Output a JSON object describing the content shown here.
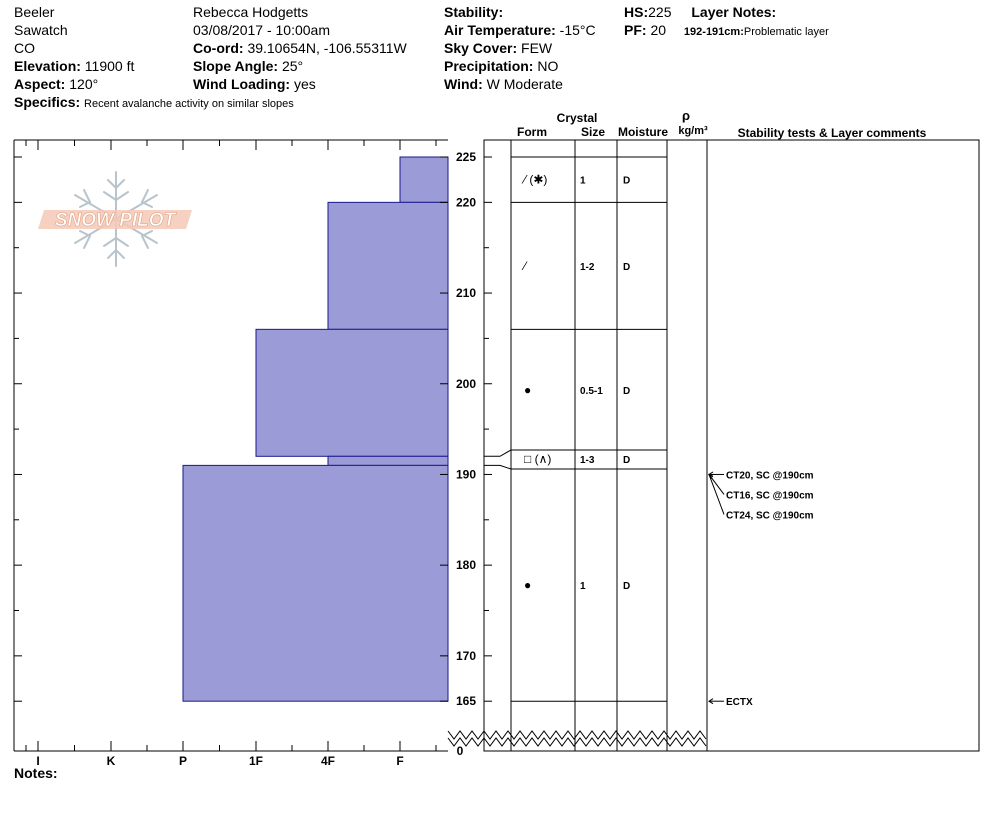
{
  "site": {
    "observer": "Beeler",
    "range": "Sawatch",
    "state": "CO",
    "elevation_label": "Elevation:",
    "elevation": "11900 ft",
    "aspect_label": "Aspect:",
    "aspect": "120°",
    "specifics_label": "Specifics:",
    "specifics": "Recent avalanche activity on similar slopes"
  },
  "meta": {
    "author": "Rebecca Hodgetts",
    "datetime": "03/08/2017 - 10:00am",
    "coord_label": "Co-ord:",
    "coord": "39.10654N, -106.55311W",
    "slope_label": "Slope Angle:",
    "slope": "25°",
    "wind_loading_label": "Wind Loading:",
    "wind_loading": "yes"
  },
  "conditions": {
    "stability_label": "Stability:",
    "stability": "",
    "air_temp_label": "Air Temperature:",
    "air_temp": "-15°C",
    "sky_label": "Sky Cover:",
    "sky": "FEW",
    "precip_label": "Precipitation:",
    "precip": "NO",
    "wind_label": "Wind:",
    "wind": "W Moderate"
  },
  "summary": {
    "hs_label": "HS:",
    "hs": "225",
    "pf_label": "PF:",
    "pf": "20",
    "layer_notes_label": "Layer Notes:",
    "layer_note_range": "192-191cm:",
    "layer_note_text": "Problematic layer"
  },
  "logo": {
    "text": "SNOW PILOT"
  },
  "columns": {
    "crystal": "Crystal",
    "form": "Form",
    "size": "Size",
    "moisture": "Moisture",
    "rho": "ρ",
    "density_unit": "kg/m³",
    "stability_comments": "Stability tests & Layer comments"
  },
  "notes_label": "Notes:",
  "colors": {
    "hardness_fill": "#9b9bd7",
    "hardness_stroke": "#1a1a8a"
  },
  "chart_data": {
    "type": "bar",
    "title": "",
    "y_axis": {
      "ylim": [
        165,
        225
      ],
      "broken_to": 0,
      "ticks": [
        225,
        220,
        210,
        200,
        190,
        180,
        170,
        165
      ],
      "bottom_label": "0"
    },
    "x_axis": {
      "hardness_scale": [
        "I",
        "K",
        "P",
        "1F",
        "4F",
        "F"
      ],
      "reversed": true
    },
    "hardness_layers": [
      {
        "top": 225,
        "bottom": 220,
        "hardness": "F"
      },
      {
        "top": 220,
        "bottom": 206,
        "hardness": "4F"
      },
      {
        "top": 206,
        "bottom": 192,
        "hardness": "1F"
      },
      {
        "top": 192,
        "bottom": 191,
        "hardness": "4F"
      },
      {
        "top": 191,
        "bottom": 165,
        "hardness": "P"
      }
    ],
    "layer_boundaries": [
      225,
      220,
      206,
      192.7,
      190.6,
      165
    ],
    "layer_details": [
      {
        "mid": 222.5,
        "form_icon": "decomposing-fragments-with-precipitation-icon",
        "form": "⁄ (✱)",
        "size": "1",
        "moisture": "D"
      },
      {
        "mid": 213,
        "form_icon": "decomposing-fragments-icon",
        "form": "⁄",
        "size": "1-2",
        "moisture": "D"
      },
      {
        "mid": 199.3,
        "form_icon": "rounded-grains-icon",
        "form": "●",
        "size": "0.5-1",
        "moisture": "D"
      },
      {
        "mid": 191.7,
        "form_icon": "faceted-crystals-with-depth-hoar-icon",
        "form": "□ (∧)",
        "size": "1-3",
        "moisture": "D"
      },
      {
        "mid": 177.8,
        "form_icon": "rounded-grains-icon",
        "form": "●",
        "size": "1",
        "moisture": "D"
      }
    ],
    "stability_tests": [
      {
        "depth": 190,
        "label": "CT20, SC @190cm"
      },
      {
        "depth": 190,
        "label": "CT16, SC @190cm"
      },
      {
        "depth": 190,
        "label": "CT24, SC @190cm"
      },
      {
        "depth": 165,
        "label": "ECTX"
      }
    ]
  }
}
